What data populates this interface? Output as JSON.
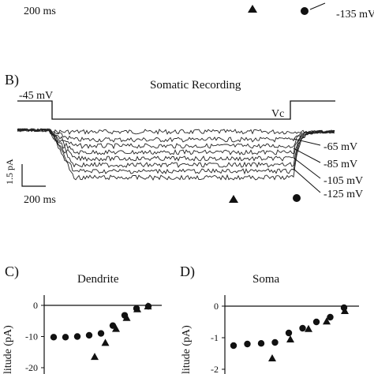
{
  "top_fragment": {
    "scale_time": "200 ms",
    "voltage_label": "-135 mV"
  },
  "panel_b": {
    "letter": "B)",
    "title": "Somatic Recording",
    "holding": "-45 mV",
    "command": "Vc",
    "scale_current": "1.5 pA",
    "scale_time": "200 ms",
    "voltages": [
      "-65 mV",
      "-85 mV",
      "-105 mV",
      "-125 mV"
    ]
  },
  "chart_data": [
    {
      "type": "scatter",
      "panel": "C)",
      "title": "Dendrite",
      "ylabel": "litude (pA)",
      "yticks": [
        "0",
        "-10",
        "-20"
      ],
      "ylim": [
        -20,
        0
      ],
      "series": [
        {
          "marker": "circle",
          "values": [
            -10.2,
            -10.2,
            -10.0,
            -9.6,
            -9.0,
            -6.5,
            -3.2,
            -1.0,
            -0.3
          ]
        },
        {
          "marker": "triangle",
          "values": [
            -16.5,
            -12.0,
            -7.5,
            -4.0,
            -1.2,
            -0.3
          ]
        }
      ]
    },
    {
      "type": "scatter",
      "panel": "D)",
      "title": "Soma",
      "ylabel": "litude (pA)",
      "yticks": [
        "0",
        "-1",
        "-2"
      ],
      "ylim": [
        -2,
        0
      ],
      "series": [
        {
          "marker": "circle",
          "values": [
            -1.25,
            -1.2,
            -1.18,
            -1.15,
            -0.85,
            -0.7,
            -0.5,
            -0.35,
            -0.05
          ]
        },
        {
          "marker": "triangle",
          "values": [
            -1.65,
            -1.05,
            -0.72,
            -0.48,
            -0.15
          ]
        }
      ]
    }
  ]
}
